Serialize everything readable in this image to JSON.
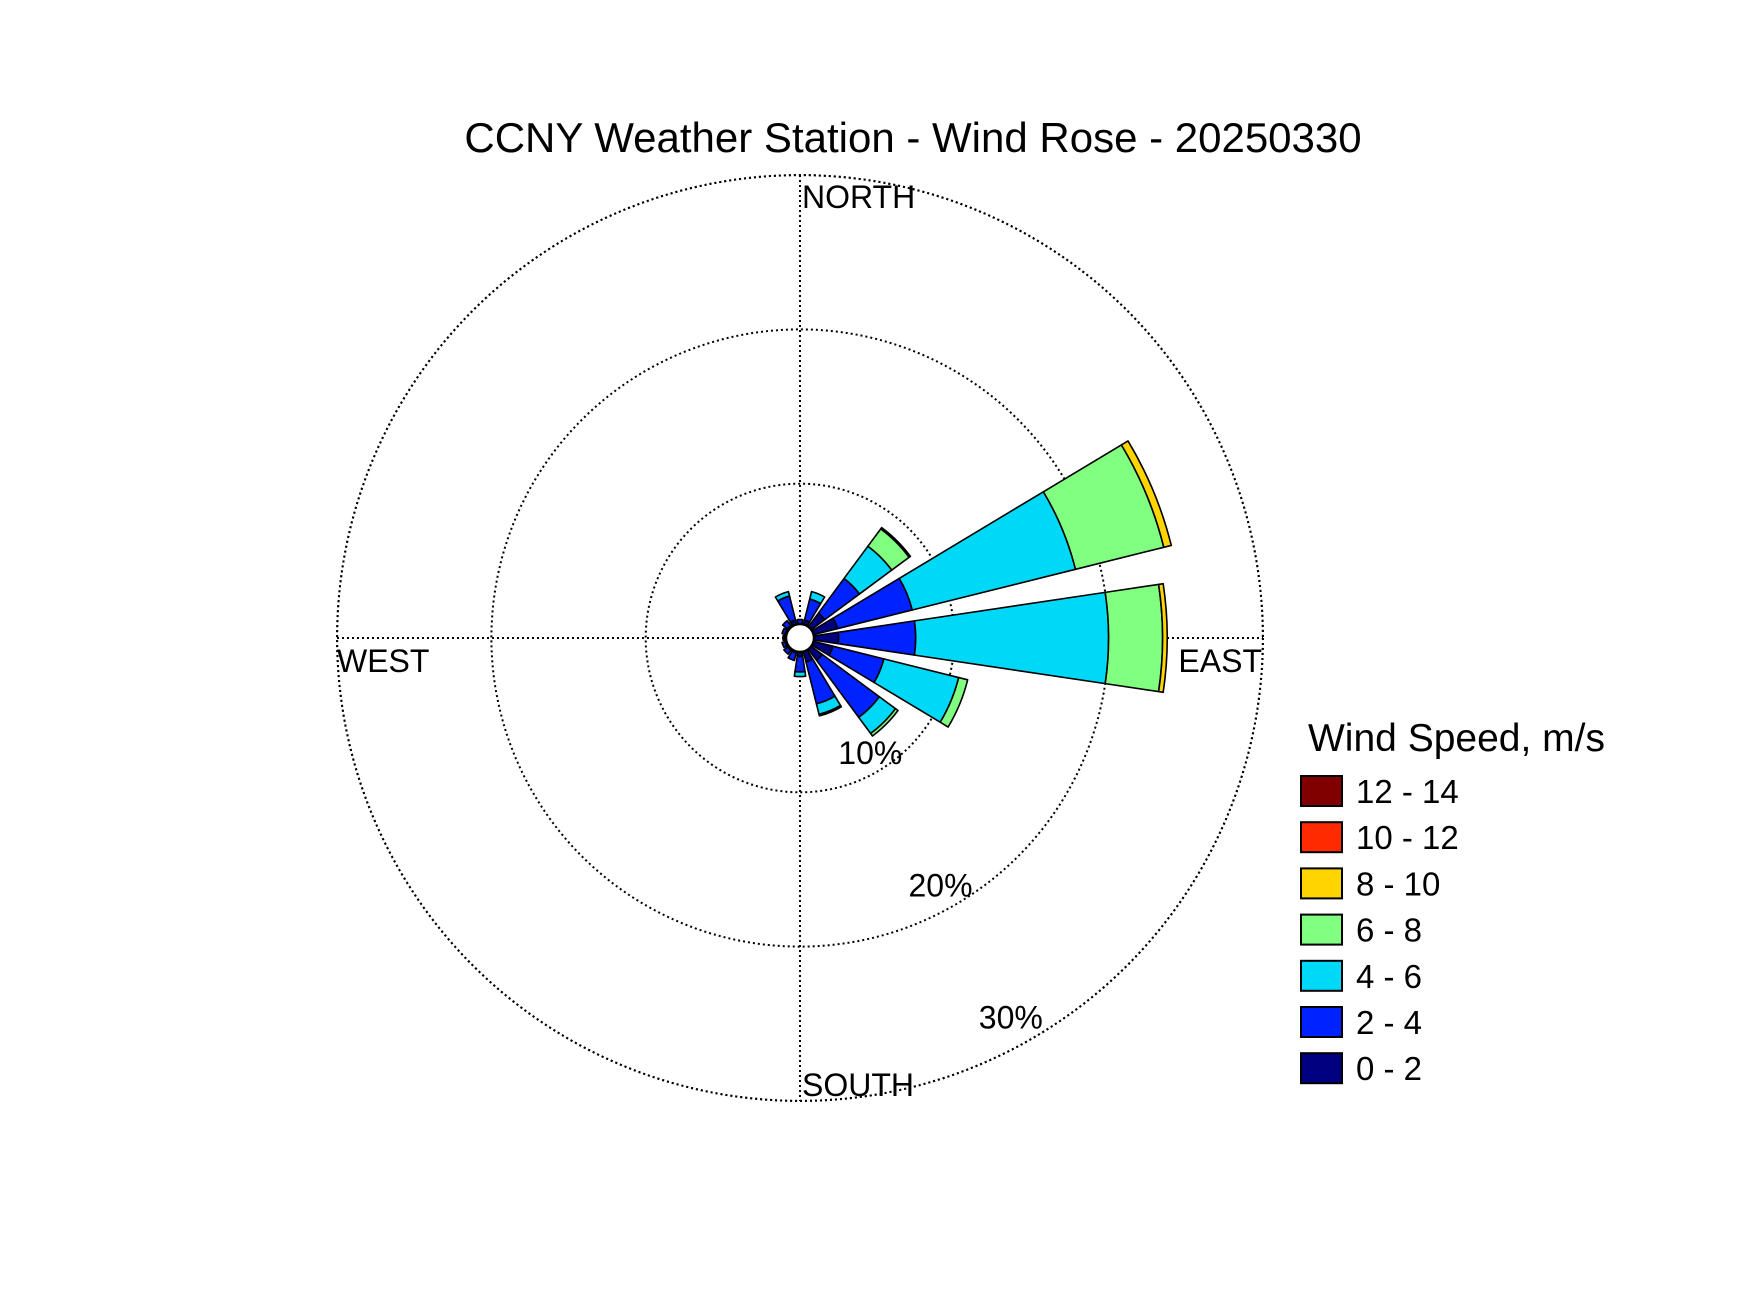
{
  "chart_data": {
    "type": "windrose",
    "title": "CCNY Weather Station - Wind Rose - 20250330",
    "directions": [
      "N",
      "NNE",
      "NE",
      "ENE",
      "E",
      "ESE",
      "SE",
      "SSE",
      "S",
      "SSW",
      "SW",
      "WSW",
      "W",
      "WNW",
      "NW",
      "NNW"
    ],
    "direction_labels": {
      "north": "NORTH",
      "east": "EAST",
      "south": "SOUTH",
      "west": "WEST"
    },
    "radial_ticks": [
      {
        "value": 10,
        "label": "10%"
      },
      {
        "value": 20,
        "label": "20%"
      },
      {
        "value": 30,
        "label": "30%"
      }
    ],
    "rmax": 30,
    "legend": {
      "title": "Wind Speed, m/s",
      "placement": "right"
    },
    "speed_bins": [
      {
        "label": "0 - 2",
        "color": "#000080"
      },
      {
        "label": "2 - 4",
        "color": "#0022ff"
      },
      {
        "label": "4 - 6",
        "color": "#00d8f8"
      },
      {
        "label": "6 - 8",
        "color": "#80ff80"
      },
      {
        "label": "8 - 10",
        "color": "#ffd400"
      },
      {
        "label": "10 - 12",
        "color": "#ff2a00"
      },
      {
        "label": "12 - 14",
        "color": "#800000"
      }
    ],
    "series": [
      {
        "direction": "N",
        "values": [
          0.8,
          0.4,
          0.0,
          0.0,
          0.0,
          0.0,
          0.0
        ]
      },
      {
        "direction": "NNE",
        "values": [
          1.2,
          1.4,
          0.5,
          0.0,
          0.0,
          0.0,
          0.0
        ]
      },
      {
        "direction": "NE",
        "values": [
          2.0,
          2.8,
          2.6,
          1.4,
          0.1,
          0.0,
          0.0
        ]
      },
      {
        "direction": "ENE",
        "values": [
          2.5,
          5.0,
          10.9,
          5.9,
          0.5,
          0.0,
          0.0
        ]
      },
      {
        "direction": "E",
        "values": [
          2.5,
          5.0,
          12.5,
          3.5,
          0.3,
          0.0,
          0.0
        ]
      },
      {
        "direction": "ESE",
        "values": [
          2.2,
          3.4,
          5.0,
          0.6,
          0.0,
          0.0,
          0.0
        ]
      },
      {
        "direction": "SE",
        "values": [
          1.8,
          4.6,
          1.3,
          0.2,
          0.0,
          0.0,
          0.0
        ]
      },
      {
        "direction": "SSE",
        "values": [
          1.6,
          2.8,
          0.7,
          0.1,
          0.0,
          0.0,
          0.0
        ]
      },
      {
        "direction": "S",
        "values": [
          1.2,
          1.0,
          0.3,
          0.0,
          0.0,
          0.0,
          0.0
        ]
      },
      {
        "direction": "SSW",
        "values": [
          1.0,
          0.5,
          0.0,
          0.0,
          0.0,
          0.0,
          0.0
        ]
      },
      {
        "direction": "SW",
        "values": [
          1.0,
          0.3,
          0.0,
          0.0,
          0.0,
          0.0,
          0.0
        ]
      },
      {
        "direction": "WSW",
        "values": [
          1.0,
          0.2,
          0.0,
          0.0,
          0.0,
          0.0,
          0.0
        ]
      },
      {
        "direction": "W",
        "values": [
          1.0,
          0.1,
          0.0,
          0.0,
          0.0,
          0.0,
          0.0
        ]
      },
      {
        "direction": "WNW",
        "values": [
          1.0,
          0.2,
          0.0,
          0.0,
          0.0,
          0.0,
          0.0
        ]
      },
      {
        "direction": "NW",
        "values": [
          1.0,
          0.4,
          0.0,
          0.0,
          0.0,
          0.0,
          0.0
        ]
      },
      {
        "direction": "NNW",
        "values": [
          1.2,
          1.6,
          0.3,
          0.0,
          0.0,
          0.0,
          0.0
        ]
      }
    ],
    "grid": true
  }
}
